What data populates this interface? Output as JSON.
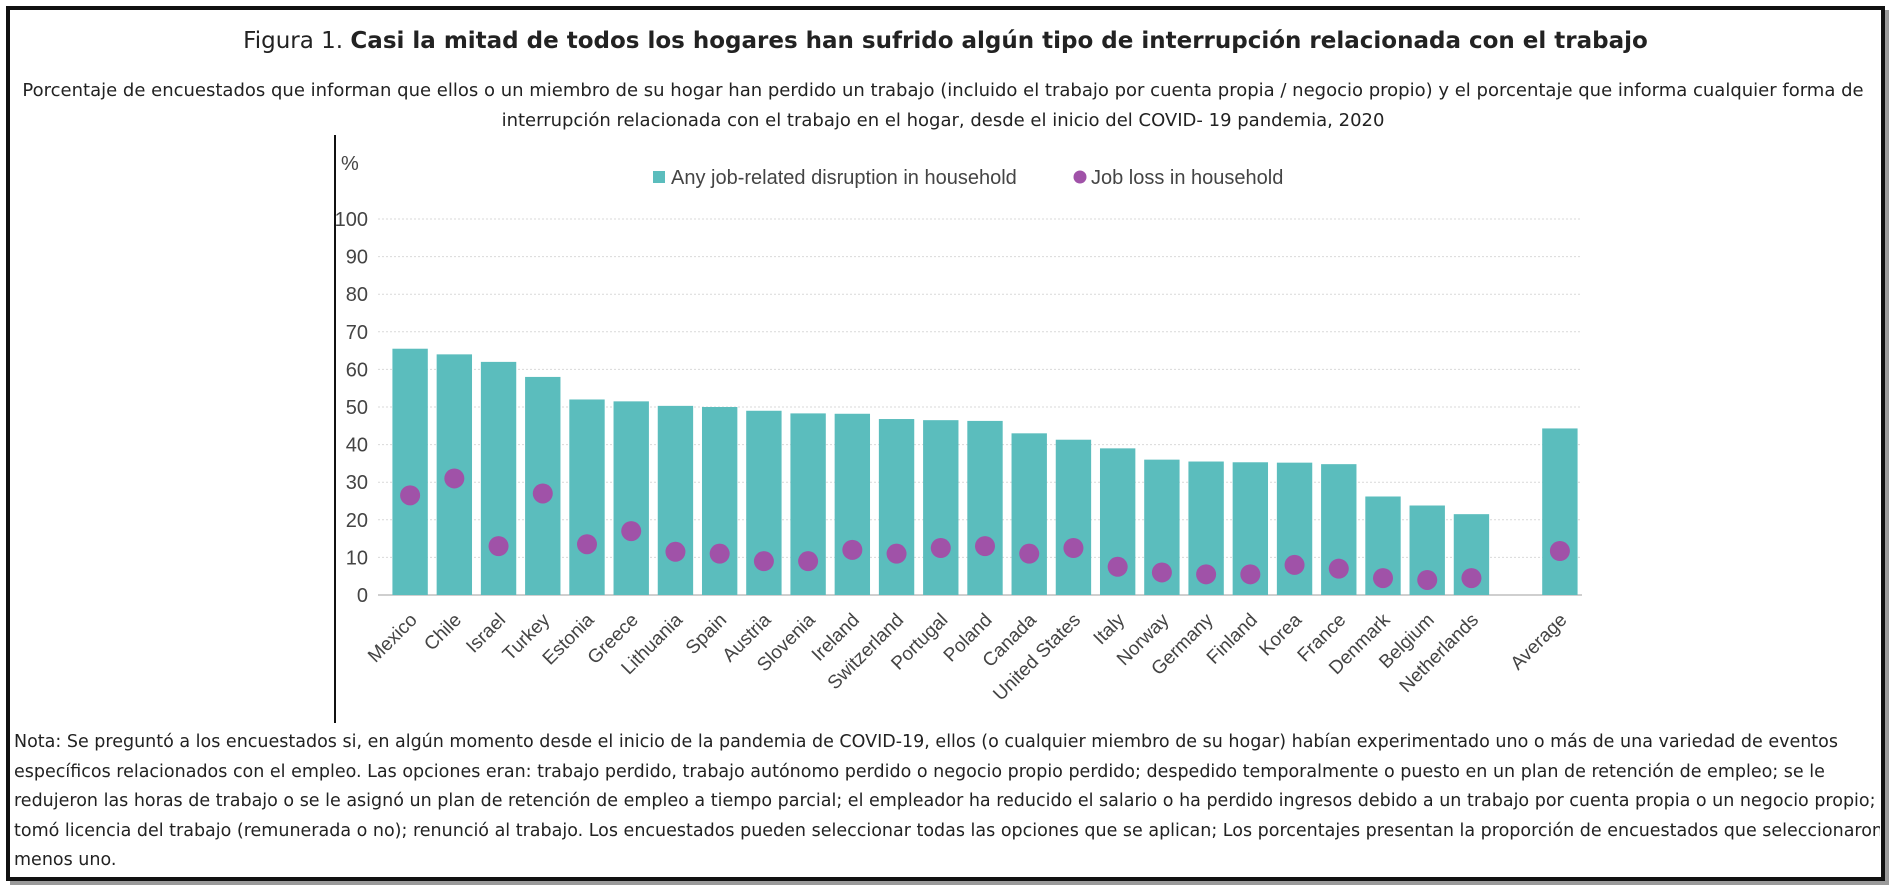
{
  "figure": {
    "title_prefix": "Figura 1. ",
    "title_bold": "Casi la mitad de todos los hogares han sufrido algún tipo de interrupción relacionada con el trabajo",
    "subtitle": "Porcentaje de encuestados que informan que ellos o un miembro de su hogar han perdido un trabajo (incluido el trabajo por cuenta propia / negocio propio) y el porcentaje que informa cualquier forma de interrupción relacionada con el trabajo en el hogar, desde el inicio del COVID- 19 pandemia, 2020",
    "note_lines": [
      "Nota: Se preguntó a los encuestados si, en algún momento desde el inicio de la pandemia de COVID-19, ellos (o cualquier miembro de su hogar) habían experimentado uno o más de una variedad de eventos",
      "específicos relacionados con el empleo. Las opciones eran: trabajo perdido, trabajo autónomo perdido o negocio propio perdido; despedido temporalmente o puesto en un plan de retención de empleo; se le",
      "redujeron las horas de trabajo o se le asignó un plan de retención de empleo a tiempo parcial; el empleador ha reducido el salario o ha perdido ingresos debido a un trabajo por cuenta propia o un negocio propio;",
      "tomó licencia del trabajo (remunerada o no); renunció al trabajo. Los encuestados pueden seleccionar todas las opciones que se aplican; Los porcentajes presentan la proporción de encuestados que seleccionaron al",
      "menos uno."
    ]
  },
  "chart_data": {
    "type": "bar",
    "ylabel": "%",
    "ylim": [
      0,
      100
    ],
    "yticks": [
      0,
      10,
      20,
      30,
      40,
      50,
      60,
      70,
      80,
      90,
      100
    ],
    "grid": true,
    "legend_position": "top",
    "categories": [
      "Mexico",
      "Chile",
      "Israel",
      "Turkey",
      "Estonia",
      "Greece",
      "Lithuania",
      "Spain",
      "Austria",
      "Slovenia",
      "Ireland",
      "Switzerland",
      "Portugal",
      "Poland",
      "Canada",
      "United States",
      "Italy",
      "Norway",
      "Germany",
      "Finland",
      "Korea",
      "France",
      "Denmark",
      "Belgium",
      "Netherlands",
      "",
      "Average"
    ],
    "series": [
      {
        "name": "Any job-related disruption in household",
        "type": "bar",
        "color": "#5bbdbd",
        "values": [
          65.5,
          64,
          62,
          58,
          52,
          51.5,
          50.3,
          50,
          49,
          48.3,
          48.2,
          46.8,
          46.5,
          46.3,
          43,
          41.3,
          39,
          36,
          35.5,
          35.3,
          35.2,
          34.8,
          26.2,
          23.8,
          21.5,
          null,
          44.3
        ]
      },
      {
        "name": "Job loss in household",
        "type": "scatter",
        "color": "#a052a8",
        "values": [
          26.5,
          31,
          13,
          27,
          13.5,
          17,
          11.5,
          11,
          9,
          9,
          12,
          11,
          12.5,
          13,
          11,
          12.5,
          7.5,
          6,
          5.5,
          5.5,
          8,
          7,
          4.5,
          4,
          4.5,
          null,
          11.7
        ]
      }
    ]
  }
}
